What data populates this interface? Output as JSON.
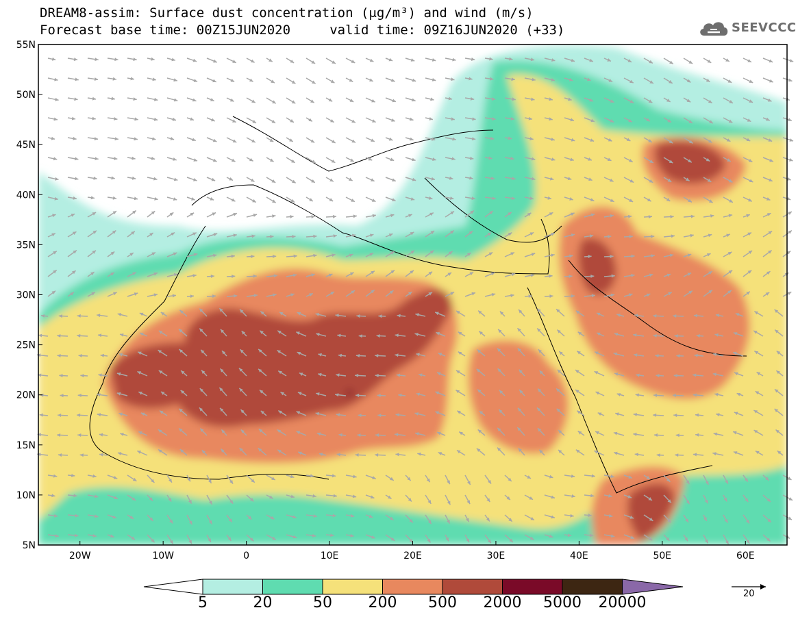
{
  "title": {
    "line1": "DREAM8-assim: Surface dust concentration (μg/m³) and wind (m/s)",
    "line2": "Forecast base time: 00Z15JUN2020     valid time: 09Z16JUN2020 (+33)"
  },
  "logo": {
    "text": "SEEVCCC",
    "icon": "cloud-icon",
    "color": "#6e6e6e"
  },
  "map": {
    "projection": "lat-lon",
    "lon_range": [
      -25,
      65
    ],
    "lat_range": [
      5,
      55
    ],
    "lon_ticks": [
      {
        "value": -20,
        "label": "20W"
      },
      {
        "value": -10,
        "label": "10W"
      },
      {
        "value": 0,
        "label": "0"
      },
      {
        "value": 10,
        "label": "10E"
      },
      {
        "value": 20,
        "label": "20E"
      },
      {
        "value": 30,
        "label": "30E"
      },
      {
        "value": 40,
        "label": "40E"
      },
      {
        "value": 50,
        "label": "50E"
      },
      {
        "value": 60,
        "label": "60E"
      }
    ],
    "lat_ticks": [
      {
        "value": 55,
        "label": "55N"
      },
      {
        "value": 50,
        "label": "50N"
      },
      {
        "value": 45,
        "label": "45N"
      },
      {
        "value": 40,
        "label": "40N"
      },
      {
        "value": 35,
        "label": "35N"
      },
      {
        "value": 30,
        "label": "30N"
      },
      {
        "value": 25,
        "label": "25N"
      },
      {
        "value": 20,
        "label": "20N"
      },
      {
        "value": 15,
        "label": "15N"
      },
      {
        "value": 10,
        "label": "10N"
      },
      {
        "value": 5,
        "label": "5N"
      }
    ],
    "wind_vector_color": "#a8a8a8"
  },
  "colorbar": {
    "levels": [
      "5",
      "20",
      "50",
      "200",
      "500",
      "2000",
      "5000",
      "20000"
    ],
    "colors": [
      "#b4eee2",
      "#5fdcb0",
      "#f5e17a",
      "#e8885e",
      "#b04a3a",
      "#7a0a28",
      "#3d2612"
    ],
    "under_color": "#ffffff",
    "over_color": "#8a68a8"
  },
  "reference_vector": {
    "label": "20"
  }
}
